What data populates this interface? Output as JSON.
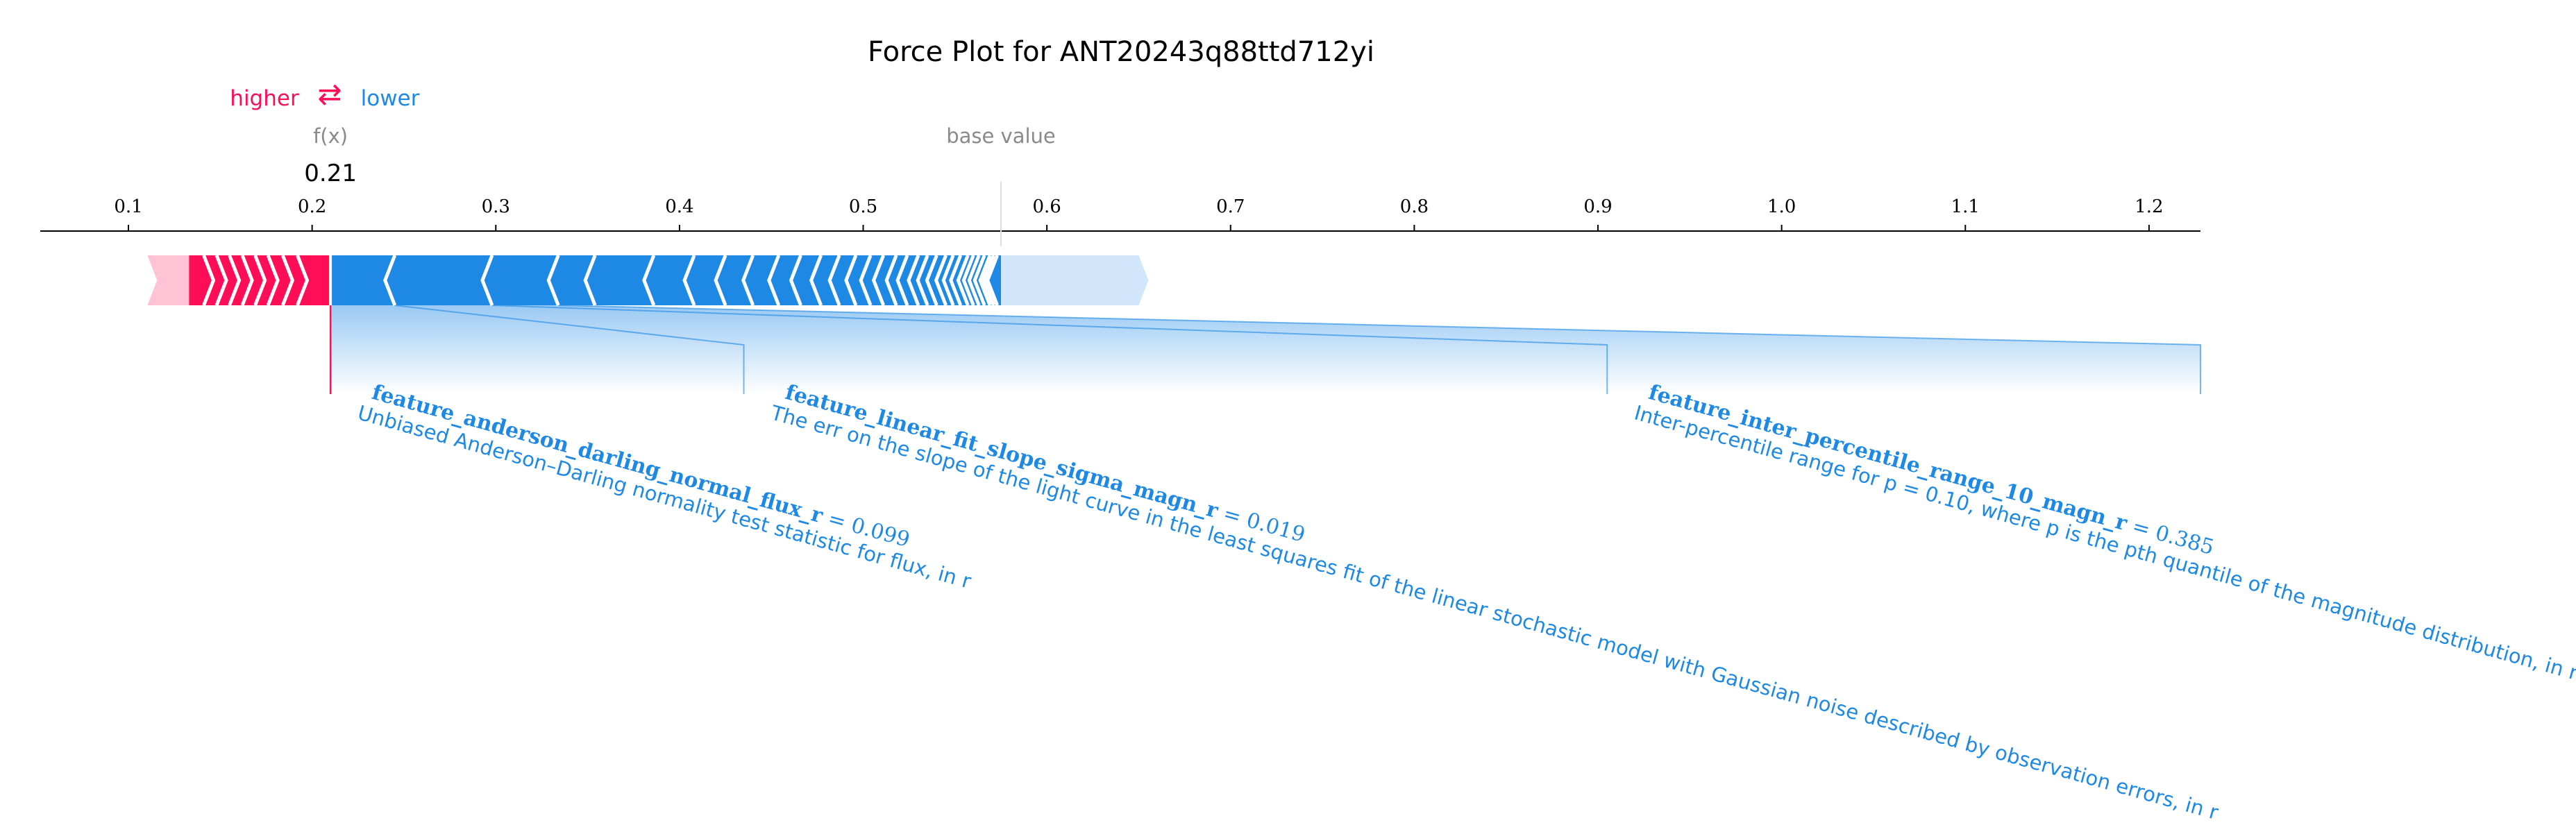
{
  "chart_data": {
    "type": "force",
    "title": "Force Plot for ANT20243q88ttd712yi",
    "legend": {
      "higher_label": "higher",
      "lower_label": "lower",
      "arrow_glyph": "⇄",
      "placement": "top-left"
    },
    "output": {
      "label": "f(x)",
      "value": 0.21,
      "value_text": "0.21"
    },
    "base": {
      "label": "base value",
      "value": 0.575
    },
    "x_ticks": [
      0.1,
      0.2,
      0.3,
      0.4,
      0.5,
      0.6,
      0.7,
      0.8,
      0.9,
      1.0,
      1.1,
      1.2
    ],
    "x_tick_labels": [
      "0.1",
      "0.2",
      "0.3",
      "0.4",
      "0.5",
      "0.6",
      "0.7",
      "0.8",
      "0.9",
      "1.0",
      "1.1",
      "1.2"
    ],
    "xlim": [
      0.052,
      1.228
    ],
    "positive": {
      "color": "#ff0d57",
      "light_color": "#ffc3d5",
      "start": 0.133,
      "end": 0.21,
      "boundaries": [
        0.133,
        0.141,
        0.148,
        0.155,
        0.162,
        0.169,
        0.176,
        0.184,
        0.192,
        0.21
      ]
    },
    "negative": {
      "color": "#1e88e5",
      "light_color": "#d1e6fa",
      "start": 0.21,
      "end": 0.575,
      "boundaries": [
        0.21,
        0.245,
        0.298,
        0.334,
        0.354,
        0.386,
        0.408,
        0.425,
        0.44,
        0.454,
        0.466,
        0.477,
        0.487,
        0.496,
        0.504,
        0.511,
        0.518,
        0.524,
        0.53,
        0.535,
        0.54,
        0.545,
        0.549,
        0.553,
        0.557,
        0.56,
        0.563,
        0.566,
        0.569,
        0.571,
        0.573,
        0.575
      ],
      "light_extent": [
        0.575,
        0.65
      ]
    },
    "features": [
      {
        "name": "feature_anderson_darling_normal_flux_r",
        "value": "0.099",
        "description": "Unbiased Anderson–Darling normality test statistic for flux, in r",
        "seg_start": 0.21,
        "seg_end": 0.245,
        "link_x": 0.435
      },
      {
        "name": "feature_linear_fit_slope_sigma_magn_r",
        "value": "0.019",
        "description": "The err on the slope of the light curve in the least squares fit of the linear stochastic model with Gaussian noise described by observation errors, in r",
        "seg_start": 0.245,
        "seg_end": 0.298,
        "link_x": 0.905
      },
      {
        "name": "feature_inter_percentile_range_10_magn_r",
        "value": "0.385",
        "description": "Inter-percentile range for p = 0.10, where p is the pth quantile of the magnitude distribution, in r",
        "seg_start": 0.298,
        "seg_end": 0.334,
        "link_x": 1.23
      }
    ]
  }
}
